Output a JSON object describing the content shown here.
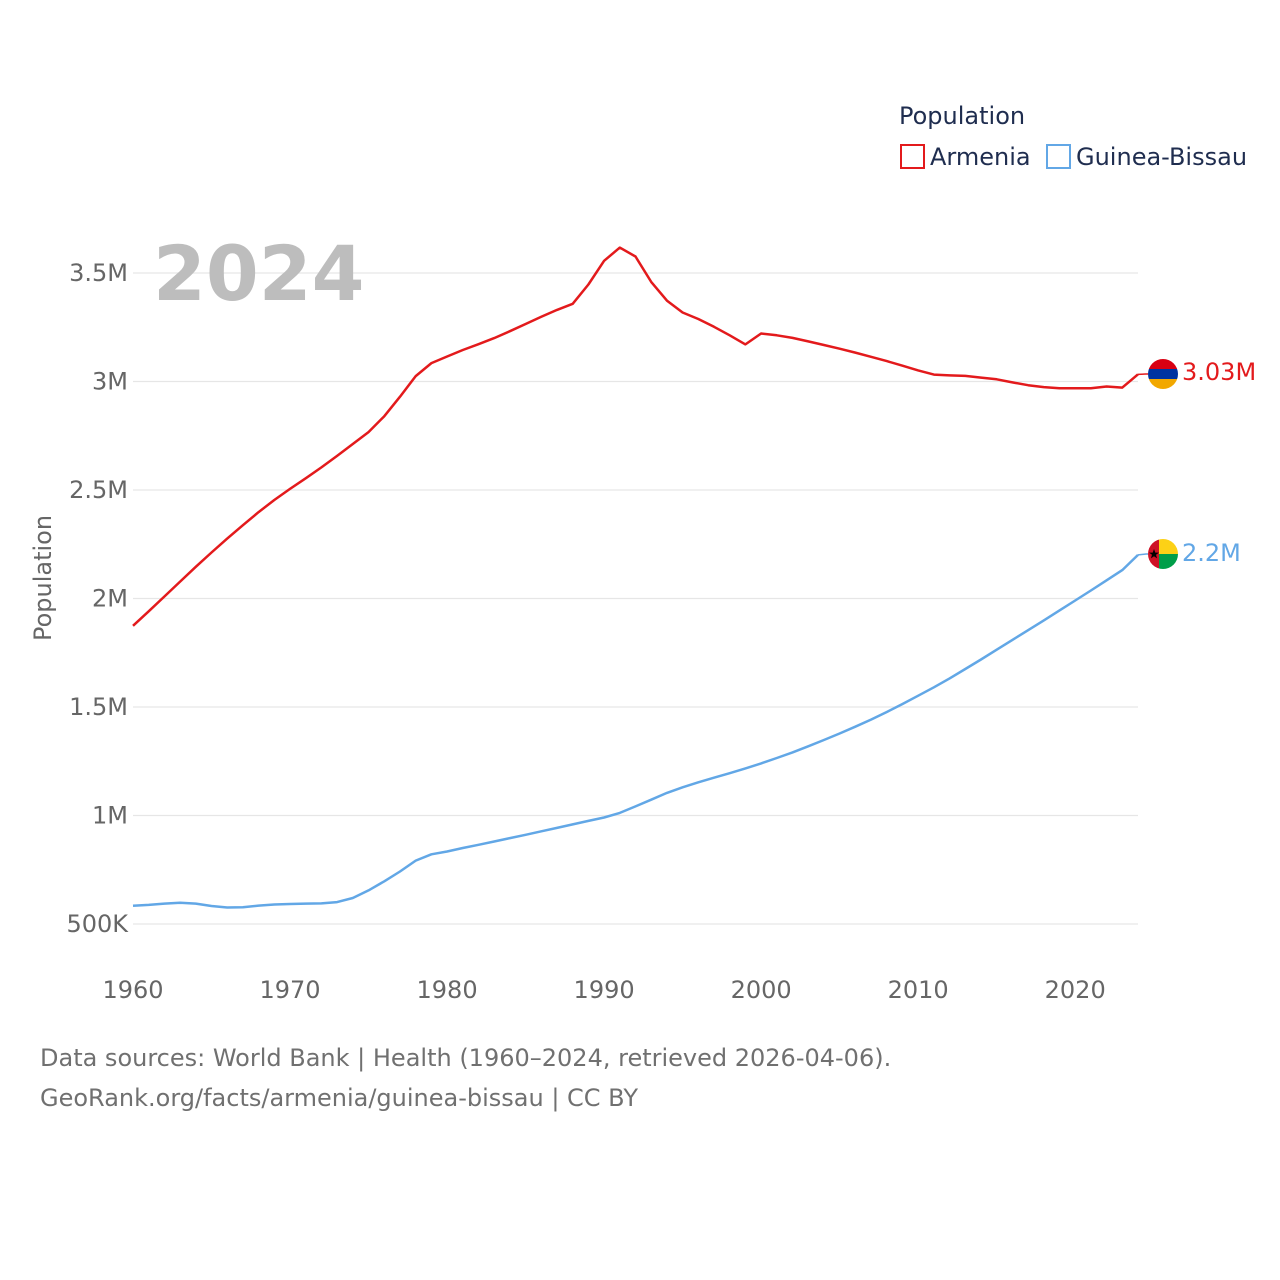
{
  "chart_data": {
    "type": "line",
    "year_label": "2024",
    "ylabel": "Population",
    "legend_title": "Population",
    "ylim": [
      400000,
      3700000
    ],
    "xlim": [
      1960,
      2024
    ],
    "x_ticks": [
      {
        "value": 1960,
        "label": "1960"
      },
      {
        "value": 1970,
        "label": "1970"
      },
      {
        "value": 1980,
        "label": "1980"
      },
      {
        "value": 1990,
        "label": "1990"
      },
      {
        "value": 2000,
        "label": "2000"
      },
      {
        "value": 2010,
        "label": "2010"
      },
      {
        "value": 2020,
        "label": "2020"
      }
    ],
    "y_ticks": [
      {
        "value": 500000,
        "label": "500K"
      },
      {
        "value": 1000000,
        "label": "1M"
      },
      {
        "value": 1500000,
        "label": "1.5M"
      },
      {
        "value": 2000000,
        "label": "2M"
      },
      {
        "value": 2500000,
        "label": "2.5M"
      },
      {
        "value": 3000000,
        "label": "3M"
      },
      {
        "value": 3500000,
        "label": "3.5M"
      }
    ],
    "x": [
      1960,
      1961,
      1962,
      1963,
      1964,
      1965,
      1966,
      1967,
      1968,
      1969,
      1970,
      1971,
      1972,
      1973,
      1974,
      1975,
      1976,
      1977,
      1978,
      1979,
      1980,
      1981,
      1982,
      1983,
      1984,
      1985,
      1986,
      1987,
      1988,
      1989,
      1990,
      1991,
      1992,
      1993,
      1994,
      1995,
      1996,
      1997,
      1998,
      1999,
      2000,
      2001,
      2002,
      2003,
      2004,
      2005,
      2006,
      2007,
      2008,
      2009,
      2010,
      2011,
      2012,
      2013,
      2014,
      2015,
      2016,
      2017,
      2018,
      2019,
      2020,
      2021,
      2022,
      2023,
      2024
    ],
    "series": [
      {
        "name": "Armenia",
        "color": "#e31a1c",
        "end_label": "3.03M",
        "flag": "armenia",
        "values": [
          1874000,
          1941000,
          2009000,
          2078000,
          2146000,
          2212000,
          2276000,
          2338000,
          2398000,
          2454000,
          2505000,
          2554000,
          2604000,
          2657000,
          2712000,
          2767000,
          2840000,
          2930000,
          3025000,
          3085000,
          3115000,
          3145000,
          3172000,
          3200000,
          3232000,
          3265000,
          3298000,
          3330000,
          3358000,
          3447000,
          3556000,
          3617000,
          3576000,
          3459000,
          3373000,
          3318000,
          3288000,
          3252000,
          3213000,
          3171000,
          3221000,
          3213000,
          3201000,
          3185000,
          3168000,
          3151000,
          3133000,
          3114000,
          3094000,
          3073000,
          3051000,
          3032000,
          3028000,
          3026000,
          3018000,
          3010000,
          2996000,
          2983000,
          2974000,
          2969000,
          2969000,
          2969000,
          2977000,
          2972000,
          3033000
        ]
      },
      {
        "name": "Guinea-Bissau",
        "color": "#62a7e6",
        "end_label": "2.2M",
        "flag": "guinea-bissau",
        "values": [
          584000,
          588000,
          594000,
          598000,
          594000,
          583000,
          576000,
          577000,
          585000,
          590000,
          592000,
          594000,
          595000,
          601000,
          620000,
          655000,
          697000,
          742000,
          792000,
          821000,
          834000,
          850000,
          865000,
          880000,
          896000,
          911000,
          927000,
          943000,
          959000,
          975000,
          991000,
          1012000,
          1042000,
          1073000,
          1104000,
          1130000,
          1153000,
          1174000,
          1195000,
          1217000,
          1240000,
          1265000,
          1291000,
          1319000,
          1348000,
          1378000,
          1409000,
          1442000,
          1477000,
          1514000,
          1552000,
          1591000,
          1632000,
          1675000,
          1719000,
          1764000,
          1809000,
          1854000,
          1899000,
          1945000,
          1991000,
          2037000,
          2084000,
          2131000,
          2201000
        ]
      }
    ]
  },
  "footer": {
    "line1": "Data sources: World Bank | Health (1960–2024, retrieved 2026-04-06).",
    "line2": "GeoRank.org/facts/armenia/guinea-bissau | CC BY"
  }
}
